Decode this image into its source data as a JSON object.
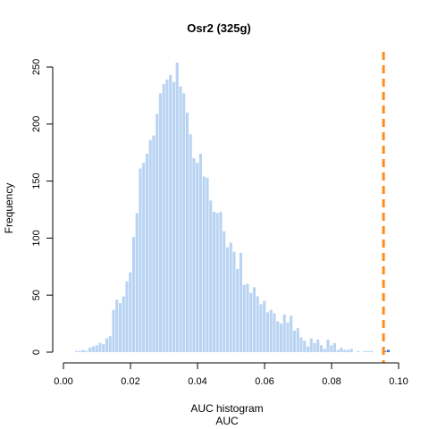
{
  "chart_data": {
    "type": "bar",
    "title": "Osr2 (325g)",
    "xlabel": "AUC histogram",
    "xlabel2": "AUC",
    "ylabel": "Frequency",
    "xlim": [
      0.0,
      0.1
    ],
    "ylim": [
      0,
      260
    ],
    "xticks": [
      "0.00",
      "0.02",
      "0.04",
      "0.06",
      "0.08",
      "0.10"
    ],
    "xtick_values": [
      0.0,
      0.02,
      0.04,
      0.06,
      0.08,
      0.1
    ],
    "yticks": [
      "0",
      "50",
      "100",
      "150",
      "200",
      "250"
    ],
    "ytick_values": [
      0,
      50,
      100,
      150,
      200,
      250
    ],
    "bin_start": 0.0035,
    "bin_width": 0.001,
    "bar_color": "#b9d4f2",
    "highlight_color": "#3a77c8",
    "reference_line": {
      "value": 0.0955,
      "color": "#ff8c1a"
    },
    "values": [
      1,
      1,
      2,
      1,
      4,
      5,
      6,
      8,
      7,
      12,
      14,
      37,
      46,
      43,
      49,
      62,
      70,
      101,
      122,
      161,
      166,
      174,
      186,
      190,
      209,
      227,
      235,
      239,
      243,
      237,
      254,
      233,
      227,
      210,
      191,
      170,
      166,
      174,
      154,
      153,
      133,
      123,
      122,
      123,
      106,
      92,
      96,
      88,
      73,
      87,
      59,
      60,
      52,
      57,
      49,
      42,
      45,
      35,
      37,
      34,
      27,
      25,
      33,
      26,
      32,
      19,
      21,
      13,
      10,
      5,
      12,
      8,
      11,
      6,
      3,
      11,
      6,
      8,
      2,
      4,
      2,
      2,
      3,
      0,
      1,
      0,
      1,
      1,
      1,
      0,
      0,
      0,
      1,
      2
    ],
    "highlight_bins": [
      92,
      93
    ]
  }
}
